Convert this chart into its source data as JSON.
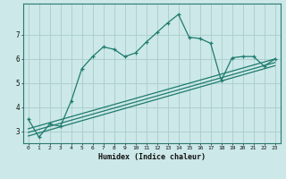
{
  "xlabel": "Humidex (Indice chaleur)",
  "background_color": "#cce8e8",
  "grid_color": "#aacccc",
  "line_color": "#1e7b6e",
  "xlim": [
    -0.5,
    23.5
  ],
  "ylim": [
    2.5,
    8.3
  ],
  "x_ticks": [
    0,
    1,
    2,
    3,
    4,
    5,
    6,
    7,
    8,
    9,
    10,
    11,
    12,
    13,
    14,
    15,
    16,
    17,
    18,
    19,
    20,
    21,
    22,
    23
  ],
  "y_ticks": [
    3,
    4,
    5,
    6,
    7
  ],
  "main_line_x": [
    0,
    1,
    2,
    3,
    4,
    5,
    6,
    7,
    8,
    9,
    10,
    11,
    12,
    13,
    14,
    15,
    16,
    17,
    18,
    19,
    20,
    21,
    22,
    23
  ],
  "main_line_y": [
    3.5,
    2.75,
    3.3,
    3.2,
    4.25,
    5.6,
    6.1,
    6.5,
    6.4,
    6.1,
    6.25,
    6.7,
    7.1,
    7.5,
    7.85,
    6.9,
    6.85,
    6.65,
    5.1,
    6.05,
    6.1,
    6.1,
    5.7,
    6.0
  ],
  "reg_line1_x": [
    0,
    23
  ],
  "reg_line1_y": [
    3.1,
    6.0
  ],
  "reg_line2_x": [
    0,
    23
  ],
  "reg_line2_y": [
    2.95,
    5.85
  ],
  "reg_line3_x": [
    0,
    23
  ],
  "reg_line3_y": [
    2.8,
    5.72
  ]
}
